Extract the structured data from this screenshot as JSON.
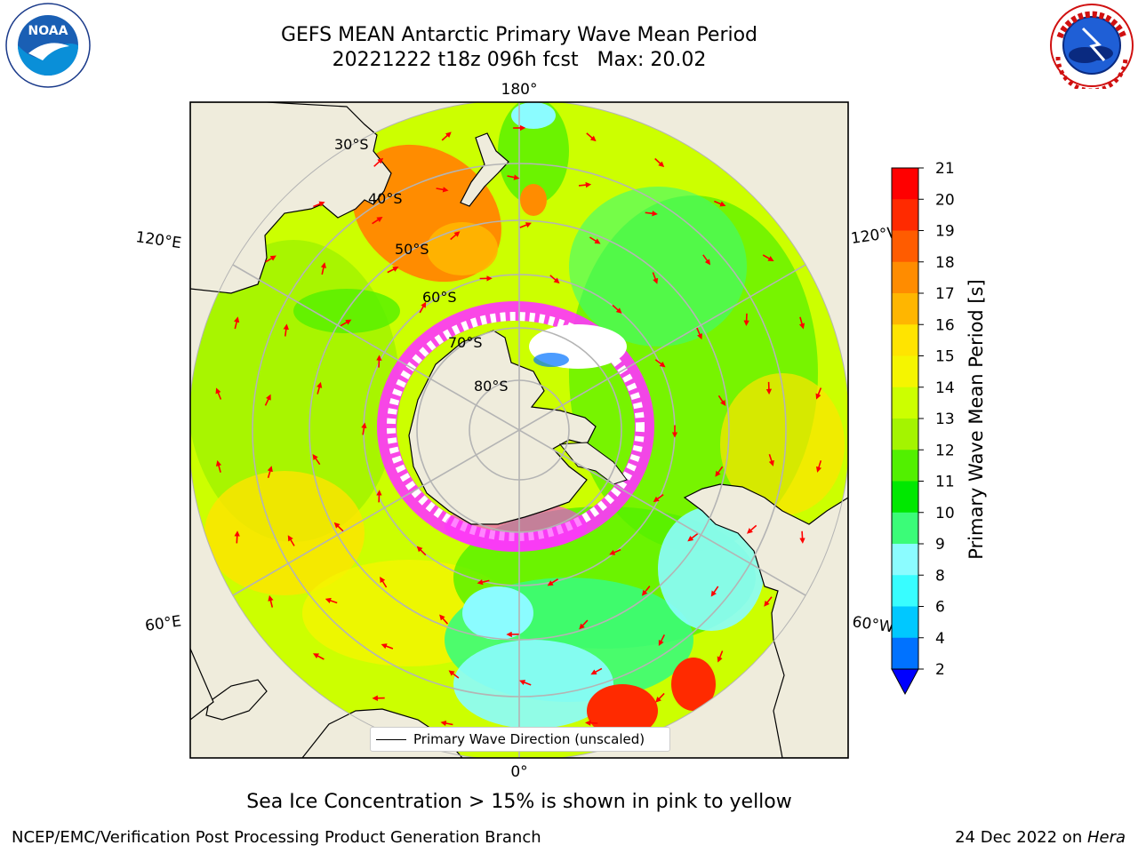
{
  "title": {
    "line1": "GEFS MEAN Antarctic Primary Wave Mean Period",
    "line2": "20221222 t18z 096h fcst   Max: 20.02"
  },
  "logos": {
    "left": {
      "name": "NOAA",
      "text": "NOAA",
      "ring_text": "NATIONAL OCEANIC AND ATMOSPHERIC ADMINISTRATION · U.S. DEPARTMENT OF COMMERCE"
    },
    "right": {
      "name": "National Weather Service",
      "ring_text": "NATIONAL WEATHER SERVICE"
    }
  },
  "map": {
    "projection": "south-polar stereographic",
    "longitude_labels": {
      "top": "180°",
      "bottom": "0°",
      "upper_left": "120°E",
      "upper_right": "120°W",
      "lower_left": "60°E",
      "lower_right": "60°W"
    },
    "latitude_labels": [
      "30°S",
      "40°S",
      "50°S",
      "60°S",
      "70°S",
      "80°S"
    ]
  },
  "legend": {
    "label": "Primary Wave Direction (unscaled)"
  },
  "colorbar": {
    "label": "Primary Wave Mean Period [s]",
    "ticks": [
      "2",
      "4",
      "6",
      "8",
      "9",
      "10",
      "11",
      "12",
      "13",
      "14",
      "15",
      "16",
      "17",
      "18",
      "19",
      "20",
      "21"
    ],
    "colors": [
      "#0072ff",
      "#00c8ff",
      "#38fdff",
      "#8bfcff",
      "#3bfc78",
      "#00e800",
      "#52f000",
      "#a4f400",
      "#ccff00",
      "#f5f500",
      "#ffe400",
      "#ffb600",
      "#ff8c00",
      "#ff5c00",
      "#ff2a00",
      "#ff0000"
    ],
    "under_color": "#0000ff"
  },
  "colors": {
    "land": "#efecdc",
    "grid": "#b4b4b4",
    "arrow": "#ff0000",
    "sea_ice": "#ff33ff"
  },
  "caption": "Sea Ice Concentration > 15% is shown in pink to yellow",
  "footer": {
    "left": "NCEP/EMC/Verification Post Processing Product Generation Branch",
    "right_date": "24 Dec 2022 on ",
    "right_host": "Hera"
  }
}
